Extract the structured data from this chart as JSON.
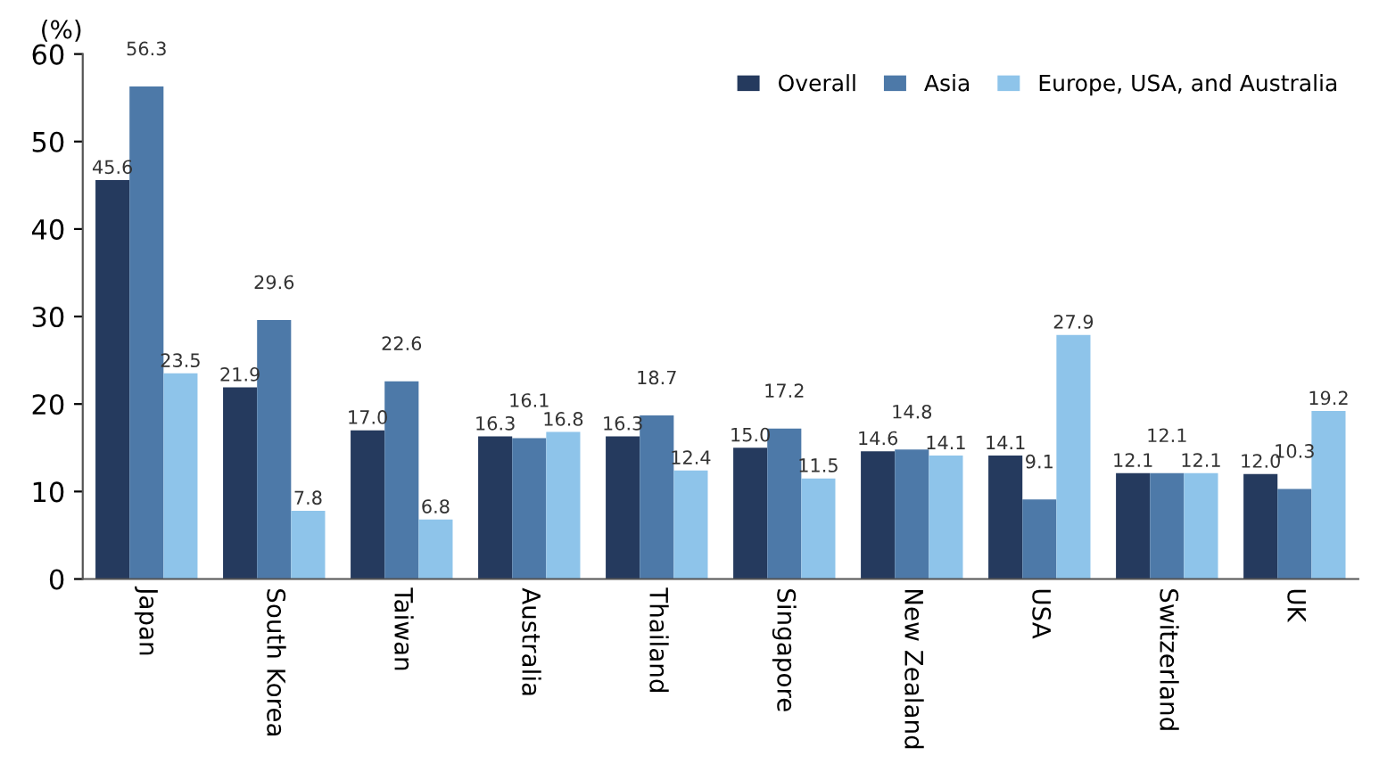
{
  "chart_data": {
    "type": "bar",
    "ylabel": "(%)",
    "categories": [
      "Japan",
      "South Korea",
      "Taiwan",
      "Australia",
      "Thailand",
      "Singapore",
      "New Zealand",
      "USA",
      "Switzerland",
      "UK"
    ],
    "series": [
      {
        "name": "Overall",
        "color": "#253a5e",
        "values": [
          45.6,
          21.9,
          17.0,
          16.3,
          16.3,
          15.0,
          14.6,
          14.1,
          12.1,
          12.0
        ],
        "value_labels": [
          "45.6",
          "21.9",
          "17.0",
          "16.3",
          "16.3",
          "15.0",
          "14.6",
          "14.1",
          "12.1",
          "12.0"
        ]
      },
      {
        "name": "Asia",
        "color": "#4d79a8",
        "values": [
          56.3,
          29.6,
          22.6,
          16.1,
          18.7,
          17.2,
          14.8,
          9.1,
          12.1,
          10.3
        ],
        "value_labels": [
          "56.3",
          "29.6",
          "22.6",
          "16.1",
          "18.7",
          "17.2",
          "14.8",
          "9.1",
          "12.1",
          "10.3"
        ]
      },
      {
        "name": "Europe, USA, and Australia",
        "color": "#8ec4ea",
        "values": [
          23.5,
          7.8,
          6.8,
          16.8,
          12.4,
          11.5,
          14.1,
          27.9,
          12.1,
          19.2
        ],
        "value_labels": [
          "23.5",
          "7.8",
          "6.8",
          "16.8",
          "12.4",
          "11.5",
          "14.1",
          "27.9",
          "12.1",
          "19.2"
        ]
      }
    ],
    "ylim": [
      0,
      60
    ],
    "yticks": [
      0,
      10,
      20,
      30,
      40,
      50,
      60
    ],
    "grid": false,
    "legend": "top right"
  }
}
